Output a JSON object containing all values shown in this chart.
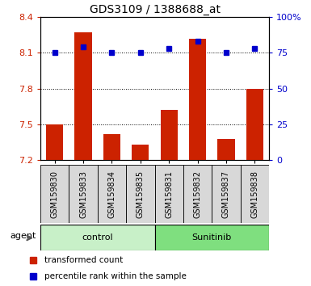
{
  "title": "GDS3109 / 1388688_at",
  "samples": [
    "GSM159830",
    "GSM159833",
    "GSM159834",
    "GSM159835",
    "GSM159831",
    "GSM159832",
    "GSM159837",
    "GSM159838"
  ],
  "red_values": [
    7.5,
    8.27,
    7.42,
    7.33,
    7.62,
    8.22,
    7.38,
    7.8
  ],
  "blue_values": [
    75,
    79,
    75,
    75,
    78,
    83,
    75,
    78
  ],
  "ylim_left": [
    7.2,
    8.4
  ],
  "ylim_right": [
    0,
    100
  ],
  "yticks_left": [
    7.2,
    7.5,
    7.8,
    8.1,
    8.4
  ],
  "ytick_labels_left": [
    "7.2",
    "7.5",
    "7.8",
    "8.1",
    "8.4"
  ],
  "yticks_right": [
    0,
    25,
    50,
    75,
    100
  ],
  "ytick_labels_right": [
    "0",
    "25",
    "50",
    "75",
    "100%"
  ],
  "groups": [
    {
      "label": "control",
      "indices": [
        0,
        1,
        2,
        3
      ],
      "color": "#c8f0c8"
    },
    {
      "label": "Sunitinib",
      "indices": [
        4,
        5,
        6,
        7
      ],
      "color": "#7FDF7F"
    }
  ],
  "agent_label": "agent",
  "bar_color": "#cc2200",
  "dot_color": "#0000cc",
  "grid_color": "#000000",
  "plot_bg": "#ffffff",
  "tick_bg": "#d8d8d8"
}
